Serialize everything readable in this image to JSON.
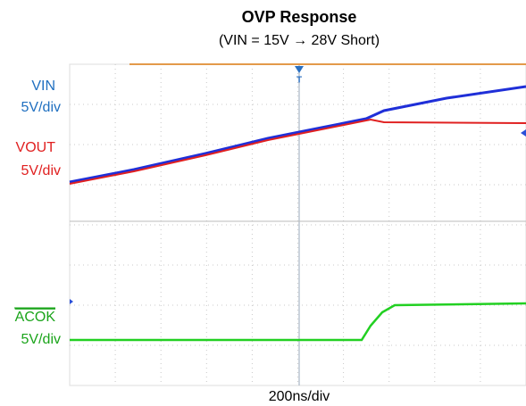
{
  "header": {
    "title": "OVP Response",
    "subtitle": "(VIN = 15V → 28V Short)"
  },
  "channels": [
    {
      "name": "VIN",
      "scale": "5V/div"
    },
    {
      "name": "VOUT",
      "scale": "5V/div"
    },
    {
      "name": "ACOK",
      "scale": "5V/div"
    }
  ],
  "timebase": "200ns/div"
}
